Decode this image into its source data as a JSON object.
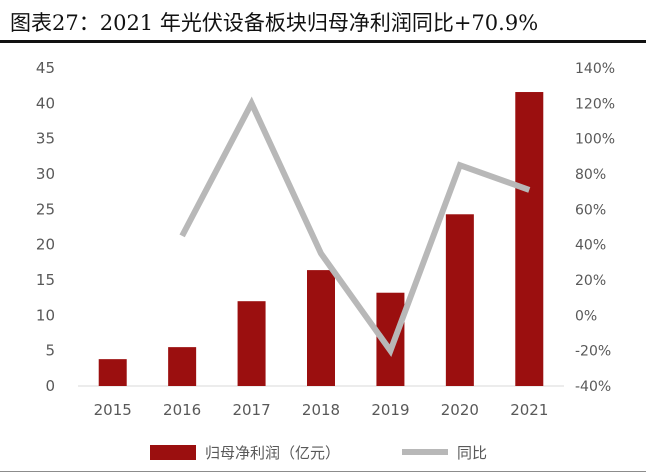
{
  "figure": {
    "title": "图表27：2021 年光伏设备板块归母净利润同比+70.9%"
  },
  "chart_data": {
    "type": "bar",
    "categories": [
      "2015",
      "2016",
      "2017",
      "2018",
      "2019",
      "2020",
      "2021"
    ],
    "series": [
      {
        "name": "归母净利润（亿元）",
        "type": "bar",
        "axis": "left",
        "values": [
          3.8,
          5.5,
          12.0,
          16.4,
          13.2,
          24.3,
          41.6
        ],
        "color": "#9b0f0f"
      },
      {
        "name": "同比",
        "type": "line",
        "axis": "right",
        "unit": "%",
        "values": [
          null,
          45,
          120,
          35,
          -20,
          85,
          71
        ],
        "color": "#b8b8b8"
      }
    ],
    "y_left": {
      "lim": [
        0,
        45
      ],
      "ticks": [
        "0",
        "5",
        "10",
        "15",
        "20",
        "25",
        "30",
        "35",
        "40",
        "45"
      ]
    },
    "y_right": {
      "lim": [
        -40,
        140
      ],
      "ticks": [
        "-40%",
        "-20%",
        "0%",
        "20%",
        "40%",
        "60%",
        "80%",
        "100%",
        "120%",
        "140%"
      ]
    },
    "grid": false,
    "legend_position": "bottom"
  }
}
